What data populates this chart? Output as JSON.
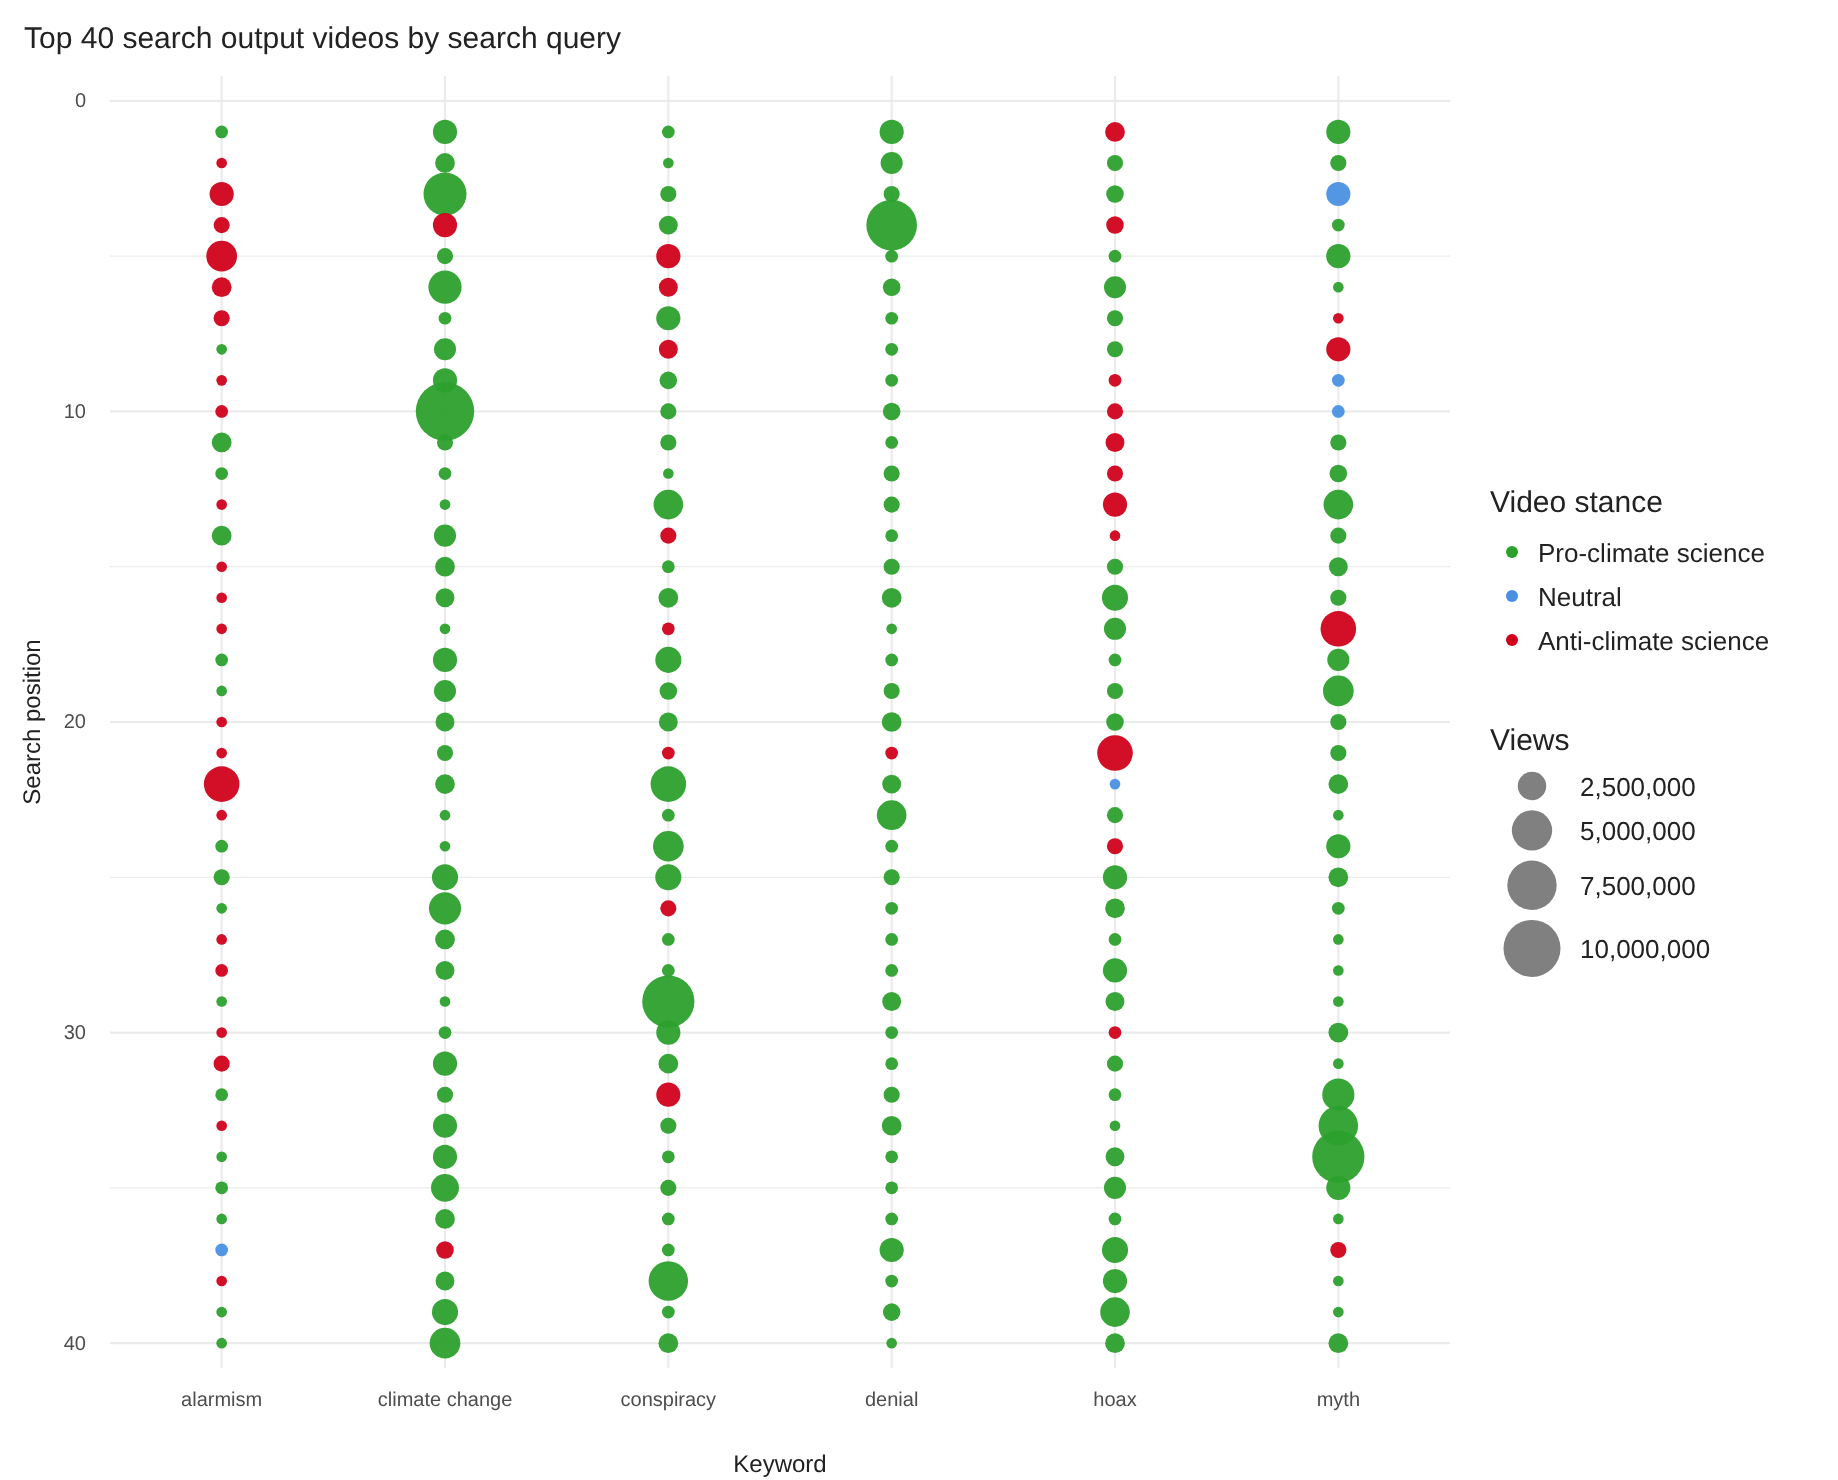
{
  "chart_data": {
    "type": "bubble",
    "title": "Top 40 search output videos by search query",
    "xlabel": "Keyword",
    "ylabel": "Search position",
    "legend_title": "Video stance",
    "annotations": [
      "Views"
    ],
    "categories": [
      "alarmism",
      "climate change",
      "conspiracy",
      "denial",
      "hoax",
      "myth"
    ],
    "ylim": [
      40.8,
      -0.8
    ],
    "yticks": [
      0,
      {
        "value": 5,
        "label": null
      },
      10,
      {
        "value": 15,
        "label": null
      },
      20,
      {
        "value": 25,
        "label": null
      },
      30,
      {
        "value": 35,
        "label": null
      },
      40
    ],
    "grid": true,
    "legend": "right",
    "size_legend": [
      {
        "value": 2500000,
        "label": "2,500,000"
      },
      {
        "value": 5000000,
        "label": "5,000,000"
      },
      {
        "value": 7500000,
        "label": "7,500,000"
      },
      {
        "value": 10000000,
        "label": "10,000,000"
      }
    ],
    "series": [
      {
        "name": "Pro-climate science",
        "color": "#2ca02c",
        "x": [
          "alarmism",
          "alarmism",
          "alarmism",
          "alarmism",
          "alarmism",
          "alarmism",
          "alarmism",
          "alarmism",
          "alarmism",
          "alarmism",
          "alarmism",
          "alarmism",
          "alarmism",
          "alarmism",
          "alarmism",
          "alarmism",
          "alarmism",
          "climate change",
          "climate change",
          "climate change",
          "climate change",
          "climate change",
          "climate change",
          "climate change",
          "climate change",
          "climate change",
          "climate change",
          "climate change",
          "climate change",
          "climate change",
          "climate change",
          "climate change",
          "climate change",
          "climate change",
          "climate change",
          "climate change",
          "climate change",
          "climate change",
          "climate change",
          "climate change",
          "climate change",
          "climate change",
          "climate change",
          "climate change",
          "climate change",
          "climate change",
          "climate change",
          "climate change",
          "climate change",
          "climate change",
          "climate change",
          "climate change",
          "climate change",
          "climate change",
          "climate change",
          "conspiracy",
          "conspiracy",
          "conspiracy",
          "conspiracy",
          "conspiracy",
          "conspiracy",
          "conspiracy",
          "conspiracy",
          "conspiracy",
          "conspiracy",
          "conspiracy",
          "conspiracy",
          "conspiracy",
          "conspiracy",
          "conspiracy",
          "conspiracy",
          "conspiracy",
          "conspiracy",
          "conspiracy",
          "conspiracy",
          "conspiracy",
          "conspiracy",
          "conspiracy",
          "conspiracy",
          "conspiracy",
          "conspiracy",
          "conspiracy",
          "conspiracy",
          "conspiracy",
          "conspiracy",
          "conspiracy",
          "conspiracy",
          "denial",
          "denial",
          "denial",
          "denial",
          "denial",
          "denial",
          "denial",
          "denial",
          "denial",
          "denial",
          "denial",
          "denial",
          "denial",
          "denial",
          "denial",
          "denial",
          "denial",
          "denial",
          "denial",
          "denial",
          "denial",
          "denial",
          "denial",
          "denial",
          "denial",
          "denial",
          "denial",
          "denial",
          "denial",
          "denial",
          "denial",
          "denial",
          "denial",
          "denial",
          "denial",
          "denial",
          "denial",
          "denial",
          "denial",
          "hoax",
          "hoax",
          "hoax",
          "hoax",
          "hoax",
          "hoax",
          "hoax",
          "hoax",
          "hoax",
          "hoax",
          "hoax",
          "hoax",
          "hoax",
          "hoax",
          "hoax",
          "hoax",
          "hoax",
          "hoax",
          "hoax",
          "hoax",
          "hoax",
          "hoax",
          "hoax",
          "hoax",
          "hoax",
          "hoax",
          "hoax",
          "hoax",
          "myth",
          "myth",
          "myth",
          "myth",
          "myth",
          "myth",
          "myth",
          "myth",
          "myth",
          "myth",
          "myth",
          "myth",
          "myth",
          "myth",
          "myth",
          "myth",
          "myth",
          "myth",
          "myth",
          "myth",
          "myth",
          "myth",
          "myth",
          "myth",
          "myth",
          "myth",
          "myth",
          "myth",
          "myth",
          "myth",
          "myth",
          "myth",
          "myth"
        ],
        "values": [
          1,
          8,
          11,
          12,
          14,
          18,
          19,
          24,
          25,
          26,
          29,
          32,
          34,
          35,
          36,
          39,
          40,
          1,
          2,
          3,
          5,
          6,
          7,
          8,
          9,
          10,
          11,
          12,
          13,
          14,
          15,
          16,
          17,
          18,
          19,
          20,
          21,
          22,
          23,
          24,
          25,
          26,
          27,
          28,
          29,
          30,
          31,
          32,
          33,
          34,
          35,
          36,
          38,
          39,
          40,
          1,
          2,
          3,
          4,
          7,
          9,
          10,
          11,
          12,
          13,
          15,
          16,
          18,
          19,
          20,
          22,
          23,
          24,
          25,
          27,
          28,
          29,
          30,
          31,
          33,
          34,
          35,
          36,
          37,
          38,
          39,
          40,
          1,
          2,
          3,
          4,
          5,
          6,
          7,
          8,
          9,
          10,
          11,
          12,
          13,
          14,
          15,
          16,
          17,
          18,
          19,
          20,
          22,
          23,
          24,
          25,
          26,
          27,
          28,
          29,
          30,
          31,
          32,
          33,
          34,
          35,
          36,
          37,
          38,
          39,
          40,
          2,
          3,
          5,
          6,
          7,
          8,
          15,
          16,
          17,
          18,
          19,
          20,
          23,
          25,
          26,
          27,
          28,
          29,
          31,
          32,
          33,
          34,
          35,
          36,
          37,
          38,
          39,
          40,
          1,
          2,
          4,
          5,
          6,
          11,
          12,
          13,
          14,
          15,
          16,
          18,
          19,
          20,
          21,
          22,
          23,
          24,
          25,
          26,
          27,
          28,
          29,
          30,
          31,
          32,
          33,
          34,
          35,
          36,
          38,
          39,
          40
        ],
        "sizes": [
          500000,
          350000,
          1200000,
          500000,
          1200000,
          500000,
          350000,
          500000,
          800000,
          350000,
          350000,
          500000,
          350000,
          500000,
          350000,
          350000,
          350000,
          1800000,
          1200000,
          5700000,
          800000,
          3400000,
          500000,
          1500000,
          1800000,
          10500000,
          800000,
          500000,
          350000,
          1500000,
          1200000,
          1100000,
          350000,
          1800000,
          1500000,
          1100000,
          800000,
          1200000,
          350000,
          350000,
          2100000,
          3200000,
          1200000,
          1100000,
          350000,
          500000,
          1800000,
          800000,
          1800000,
          1800000,
          2400000,
          1200000,
          1100000,
          2100000,
          2900000,
          500000,
          350000,
          800000,
          1100000,
          1800000,
          950000,
          800000,
          800000,
          350000,
          2700000,
          500000,
          1200000,
          2100000,
          950000,
          1100000,
          3900000,
          500000,
          2900000,
          2100000,
          500000,
          500000,
          8400000,
          1800000,
          1200000,
          800000,
          500000,
          800000,
          500000,
          500000,
          4800000,
          500000,
          1200000,
          1800000,
          1500000,
          800000,
          7900000,
          500000,
          950000,
          500000,
          500000,
          500000,
          950000,
          500000,
          800000,
          800000,
          500000,
          800000,
          1200000,
          350000,
          500000,
          800000,
          1200000,
          1100000,
          2700000,
          500000,
          800000,
          500000,
          500000,
          500000,
          1100000,
          500000,
          500000,
          800000,
          1200000,
          500000,
          500000,
          500000,
          1800000,
          500000,
          950000,
          350000,
          800000,
          950000,
          500000,
          1500000,
          800000,
          800000,
          800000,
          2100000,
          1500000,
          500000,
          800000,
          950000,
          800000,
          1800000,
          1200000,
          500000,
          1800000,
          1100000,
          800000,
          500000,
          350000,
          1100000,
          1500000,
          500000,
          2100000,
          1800000,
          2700000,
          1200000,
          1800000,
          800000,
          500000,
          1800000,
          350000,
          800000,
          950000,
          2700000,
          800000,
          1100000,
          800000,
          1500000,
          2900000,
          800000,
          800000,
          1200000,
          350000,
          1800000,
          1200000,
          500000,
          350000,
          350000,
          350000,
          1200000,
          350000,
          3200000,
          4800000,
          8400000,
          1800000,
          350000,
          350000,
          350000,
          1200000
        ]
      },
      {
        "name": "Neutral",
        "color": "#4a90e2",
        "x": [
          "alarmism",
          "hoax",
          "myth",
          "myth",
          "myth"
        ],
        "values": [
          37,
          22,
          3,
          9,
          10
        ],
        "sizes": [
          500000,
          350000,
          1800000,
          500000,
          500000
        ]
      },
      {
        "name": "Anti-climate science",
        "color": "#d0021b",
        "x": [
          "alarmism",
          "alarmism",
          "alarmism",
          "alarmism",
          "alarmism",
          "alarmism",
          "alarmism",
          "alarmism",
          "alarmism",
          "alarmism",
          "alarmism",
          "alarmism",
          "alarmism",
          "alarmism",
          "alarmism",
          "alarmism",
          "alarmism",
          "alarmism",
          "alarmism",
          "alarmism",
          "alarmism",
          "alarmism",
          "climate change",
          "climate change",
          "conspiracy",
          "conspiracy",
          "conspiracy",
          "conspiracy",
          "conspiracy",
          "conspiracy",
          "conspiracy",
          "conspiracy",
          "denial",
          "hoax",
          "hoax",
          "hoax",
          "hoax",
          "hoax",
          "hoax",
          "hoax",
          "hoax",
          "hoax",
          "hoax",
          "hoax",
          "myth",
          "myth",
          "myth",
          "myth"
        ],
        "values": [
          2,
          3,
          4,
          5,
          6,
          7,
          9,
          10,
          13,
          15,
          16,
          17,
          20,
          21,
          22,
          23,
          27,
          28,
          30,
          31,
          33,
          38,
          4,
          37,
          5,
          6,
          8,
          14,
          17,
          21,
          26,
          32,
          21,
          1,
          4,
          9,
          10,
          11,
          12,
          13,
          14,
          21,
          24,
          30,
          7,
          8,
          17,
          37
        ],
        "sizes": [
          350000,
          1800000,
          800000,
          2900000,
          1200000,
          800000,
          350000,
          500000,
          350000,
          350000,
          350000,
          350000,
          350000,
          350000,
          3900000,
          350000,
          350000,
          500000,
          350000,
          800000,
          350000,
          350000,
          1800000,
          950000,
          1800000,
          1100000,
          1100000,
          800000,
          500000,
          500000,
          800000,
          1800000,
          500000,
          1200000,
          950000,
          500000,
          800000,
          1100000,
          800000,
          1800000,
          350000,
          3900000,
          800000,
          500000,
          350000,
          1800000,
          3900000,
          800000
        ]
      }
    ]
  }
}
